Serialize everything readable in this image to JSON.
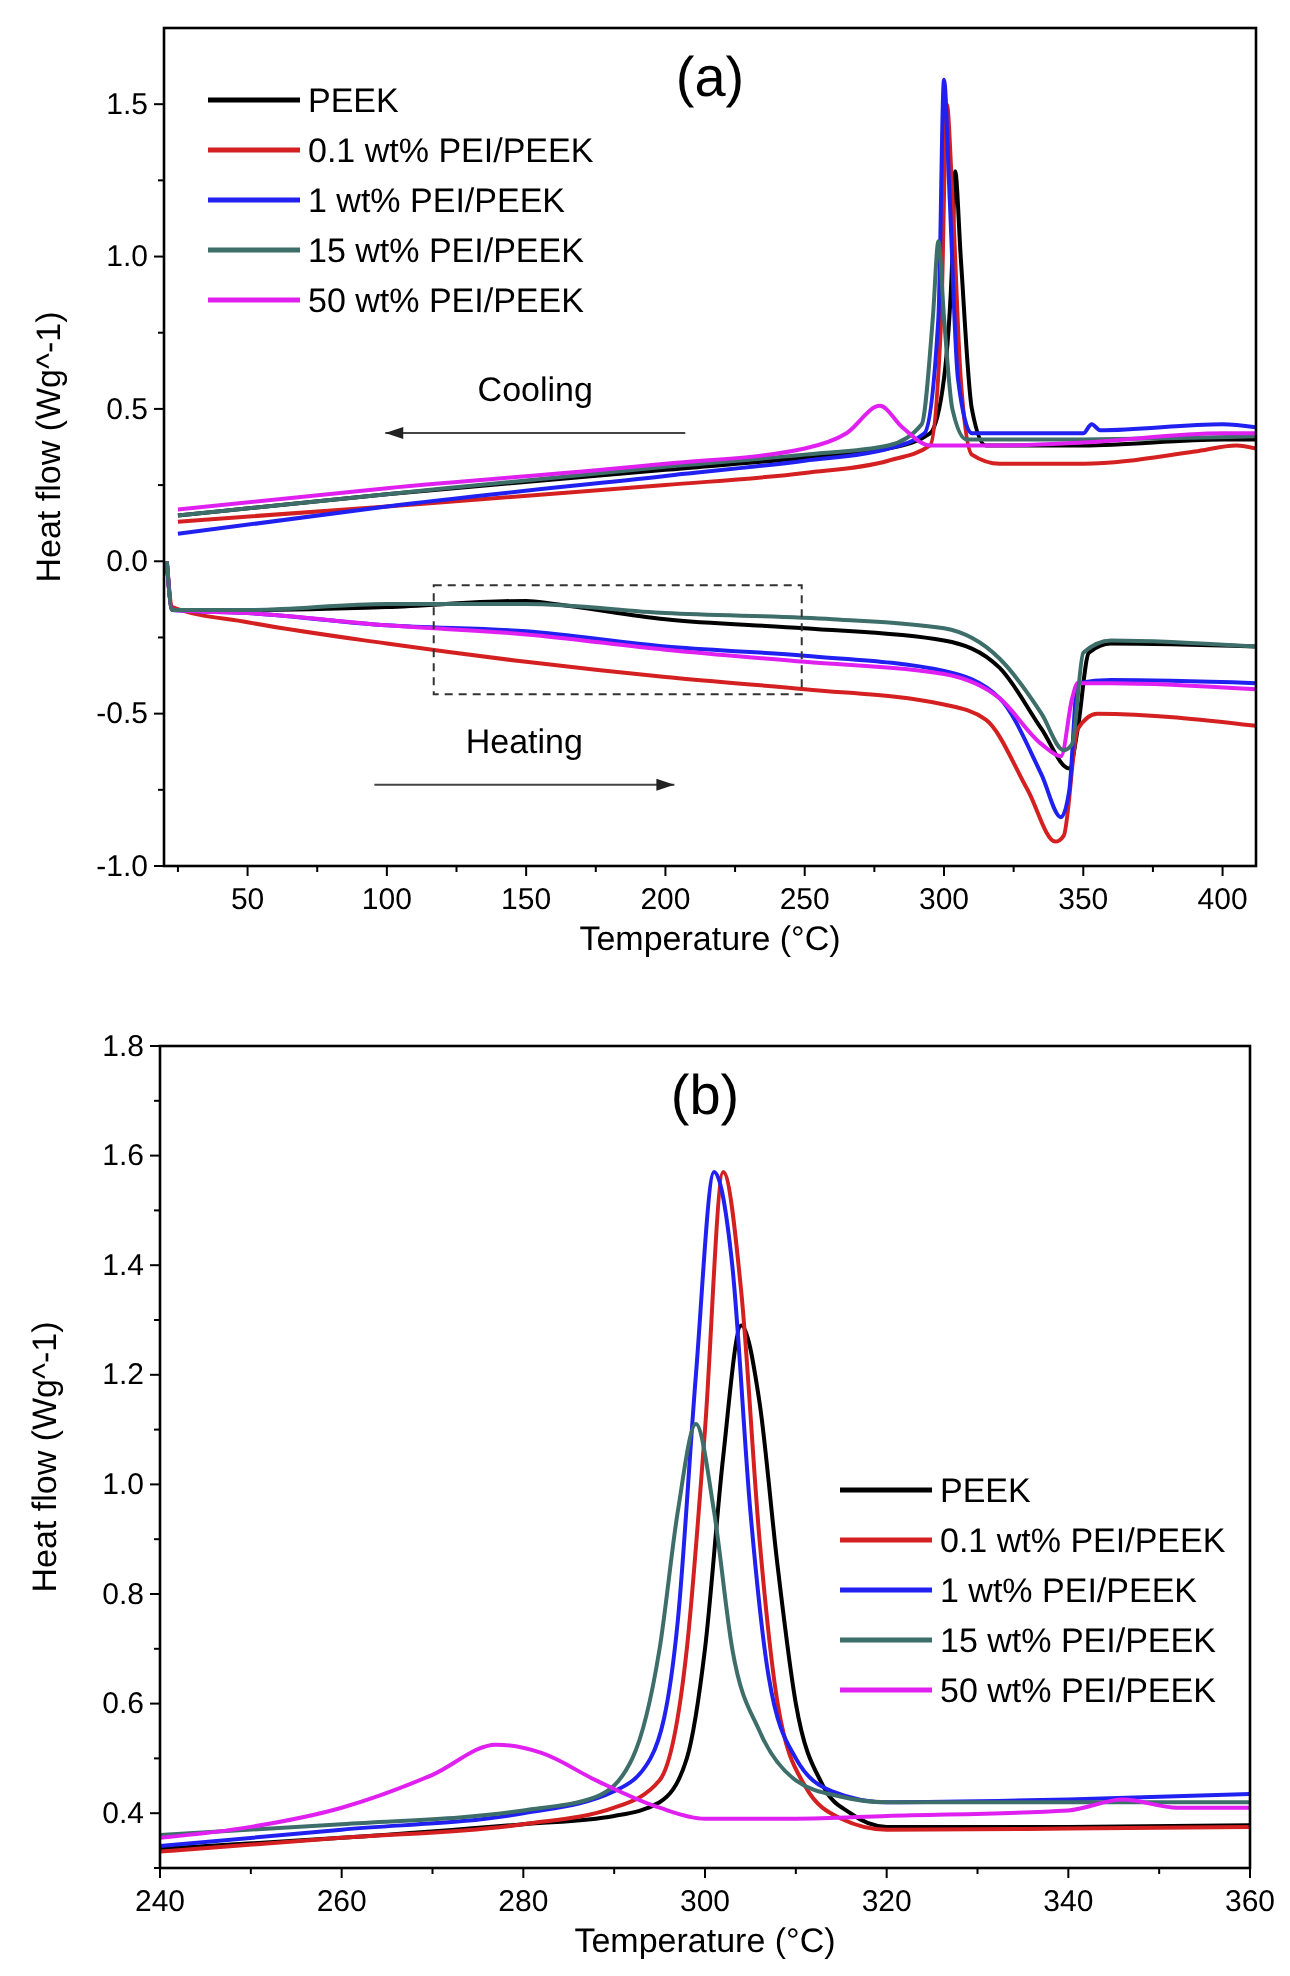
{
  "chart_data": [
    {
      "type": "line",
      "title": "(a)",
      "xlabel": "Temperature (°C)",
      "ylabel": "Heat flow (Wg^-1)",
      "annotations": [
        "Cooling",
        "Heating"
      ],
      "xlim": [
        20,
        412
      ],
      "ylim": [
        -1.0,
        1.75
      ],
      "xticks": [
        {
          "value": 25,
          "label": null
        },
        50,
        {
          "value": 75,
          "label": null
        },
        100,
        {
          "value": 125,
          "label": null
        },
        150,
        {
          "value": 175,
          "label": null
        },
        200,
        {
          "value": 225,
          "label": null
        },
        250,
        {
          "value": 275,
          "label": null
        },
        300,
        {
          "value": 325,
          "label": null
        },
        350,
        {
          "value": 375,
          "label": null
        },
        400
      ],
      "yticks": [
        {
          "value": -1,
          "label": "-1.0"
        },
        {
          "value": -0.75,
          "label": null
        },
        {
          "value": -0.5,
          "label": "-0.5"
        },
        {
          "value": -0.25,
          "label": null
        },
        {
          "value": 0,
          "label": "0.0"
        },
        {
          "value": 0.25,
          "label": null
        },
        {
          "value": 0.5,
          "label": "0.5"
        },
        {
          "value": 0.75,
          "label": null
        },
        {
          "value": 1,
          "label": "1.0"
        },
        {
          "value": 1.25,
          "label": null
        },
        {
          "value": 1.5,
          "label": "1.5"
        }
      ],
      "grid": false,
      "legend": "top left",
      "line_style": "solid",
      "marker": "none",
      "series": [
        {
          "name": "PEEK",
          "color": "#000000",
          "x": [
            25,
            100,
            200,
            250,
            280,
            295,
            300,
            303,
            304,
            306,
            310,
            315,
            350,
            400,
            412
          ],
          "values": [
            0.15,
            0.22,
            0.3,
            0.34,
            0.37,
            0.42,
            0.6,
            1.0,
            1.28,
            1.0,
            0.5,
            0.38,
            0.38,
            0.4,
            0.4
          ]
        },
        {
          "name": "0.1 wt% PEI/PEEK",
          "color": "#d42020",
          "x": [
            25,
            100,
            200,
            250,
            280,
            295,
            299,
            301,
            303,
            306,
            310,
            320,
            350,
            390,
            405,
            412
          ],
          "values": [
            0.13,
            0.18,
            0.25,
            0.29,
            0.33,
            0.38,
            0.8,
            1.5,
            1.2,
            0.6,
            0.35,
            0.32,
            0.32,
            0.36,
            0.38,
            0.37
          ]
        },
        {
          "name": "1 wt% PEI/PEEK",
          "color": "#2020f0",
          "x": [
            25,
            100,
            200,
            250,
            280,
            293,
            298,
            300,
            302,
            305,
            310,
            350,
            353,
            356,
            400,
            412
          ],
          "values": [
            0.09,
            0.18,
            0.28,
            0.33,
            0.37,
            0.42,
            0.8,
            1.58,
            1.2,
            0.6,
            0.42,
            0.42,
            0.45,
            0.43,
            0.45,
            0.44
          ]
        },
        {
          "name": "15 wt% PEI/PEEK",
          "color": "#3d6e6a",
          "x": [
            25,
            100,
            200,
            250,
            280,
            292,
            296,
            298,
            300,
            303,
            308,
            350,
            412
          ],
          "values": [
            0.15,
            0.22,
            0.31,
            0.35,
            0.38,
            0.45,
            0.8,
            1.05,
            0.8,
            0.5,
            0.4,
            0.4,
            0.41
          ]
        },
        {
          "name": "50 wt% PEI/PEEK",
          "color": "#e020f0",
          "x": [
            25,
            100,
            200,
            250,
            265,
            277,
            285,
            295,
            320,
            350,
            400,
            412
          ],
          "values": [
            0.17,
            0.24,
            0.32,
            0.37,
            0.42,
            0.51,
            0.44,
            0.38,
            0.38,
            0.39,
            0.42,
            0.42
          ]
        },
        {
          "color": "#000000",
          "x": [
            21,
            23,
            50,
            100,
            150,
            160,
            200,
            250,
            300,
            320,
            335,
            345,
            348,
            352,
            360,
            412
          ],
          "values": [
            0.0,
            -0.16,
            -0.16,
            -0.15,
            -0.13,
            -0.14,
            -0.19,
            -0.22,
            -0.26,
            -0.35,
            -0.55,
            -0.68,
            -0.55,
            -0.3,
            -0.27,
            -0.28
          ]
        },
        {
          "color": "#d42020",
          "x": [
            21,
            23,
            50,
            100,
            150,
            200,
            250,
            300,
            315,
            330,
            340,
            343,
            348,
            355,
            412
          ],
          "values": [
            0.0,
            -0.15,
            -0.2,
            -0.27,
            -0.33,
            -0.38,
            -0.42,
            -0.47,
            -0.52,
            -0.75,
            -0.92,
            -0.9,
            -0.55,
            -0.5,
            -0.54
          ]
        },
        {
          "color": "#2020f0",
          "x": [
            21,
            23,
            50,
            100,
            150,
            200,
            250,
            300,
            320,
            335,
            342,
            345,
            348,
            360,
            412
          ],
          "values": [
            0.0,
            -0.16,
            -0.17,
            -0.21,
            -0.23,
            -0.28,
            -0.31,
            -0.36,
            -0.45,
            -0.7,
            -0.84,
            -0.75,
            -0.4,
            -0.39,
            -0.4
          ]
        },
        {
          "color": "#e020f0",
          "x": [
            21,
            23,
            50,
            100,
            150,
            200,
            250,
            300,
            320,
            335,
            342,
            346,
            348,
            360,
            412
          ],
          "values": [
            0.0,
            -0.16,
            -0.17,
            -0.21,
            -0.24,
            -0.29,
            -0.33,
            -0.37,
            -0.45,
            -0.6,
            -0.64,
            -0.45,
            -0.4,
            -0.4,
            -0.42
          ]
        },
        {
          "color": "#3d6e6a",
          "x": [
            21,
            23,
            50,
            100,
            150,
            200,
            260,
            300,
            320,
            335,
            343,
            346,
            350,
            360,
            412
          ],
          "values": [
            0.0,
            -0.16,
            -0.16,
            -0.14,
            -0.14,
            -0.17,
            -0.19,
            -0.22,
            -0.32,
            -0.5,
            -0.62,
            -0.6,
            -0.3,
            -0.26,
            -0.28
          ]
        }
      ]
    },
    {
      "type": "line",
      "title": "(b)",
      "xlabel": "Temperature (°C)",
      "ylabel": "Heat flow (Wg^-1)",
      "xlim": [
        240,
        360
      ],
      "ylim": [
        0.3,
        1.8
      ],
      "xticks": [
        240,
        {
          "value": 250,
          "label": null
        },
        260,
        {
          "value": 270,
          "label": null
        },
        280,
        {
          "value": 290,
          "label": null
        },
        300,
        {
          "value": 310,
          "label": null
        },
        320,
        {
          "value": 330,
          "label": null
        },
        340,
        {
          "value": 350,
          "label": null
        },
        360
      ],
      "yticks": [
        {
          "value": 0.3,
          "label": null
        },
        0.4,
        {
          "value": 0.5,
          "label": null
        },
        0.6,
        {
          "value": 0.7,
          "label": null
        },
        0.8,
        {
          "value": 0.9,
          "label": null
        },
        {
          "value": 1,
          "label": "1.0"
        },
        {
          "value": 1.1,
          "label": null
        },
        1.2,
        {
          "value": 1.3,
          "label": null
        },
        1.4,
        {
          "value": 1.5,
          "label": null
        },
        1.6,
        {
          "value": 1.7,
          "label": null
        },
        1.8
      ],
      "grid": false,
      "legend": "right",
      "line_style": "solid",
      "marker": "none",
      "series": [
        {
          "name": "PEEK",
          "color": "#000000",
          "x": [
            240,
            260,
            280,
            290,
            295,
            298,
            300,
            302,
            304,
            306,
            308,
            310,
            313,
            316,
            320,
            340,
            360
          ],
          "values": [
            0.335,
            0.355,
            0.38,
            0.395,
            0.42,
            0.5,
            0.7,
            1.05,
            1.29,
            1.15,
            0.85,
            0.6,
            0.45,
            0.4,
            0.375,
            0.375,
            0.378
          ]
        },
        {
          "name": "0.1 wt% PEI/PEEK",
          "color": "#d42020",
          "x": [
            240,
            260,
            280,
            290,
            295,
            298,
            300,
            302,
            304,
            306,
            308,
            311,
            315,
            320,
            340,
            360
          ],
          "values": [
            0.33,
            0.355,
            0.38,
            0.41,
            0.46,
            0.7,
            1.1,
            1.57,
            1.35,
            0.9,
            0.6,
            0.45,
            0.39,
            0.37,
            0.372,
            0.375
          ]
        },
        {
          "name": "1 wt% PEI/PEEK",
          "color": "#2020f0",
          "x": [
            240,
            260,
            280,
            290,
            294,
            297,
            299,
            301,
            303,
            305,
            307,
            310,
            314,
            320,
            340,
            360
          ],
          "values": [
            0.34,
            0.37,
            0.4,
            0.44,
            0.5,
            0.75,
            1.2,
            1.57,
            1.4,
            0.95,
            0.65,
            0.5,
            0.44,
            0.42,
            0.425,
            0.435
          ]
        },
        {
          "name": "15 wt% PEI/PEEK",
          "color": "#3d6e6a",
          "x": [
            240,
            260,
            280,
            288,
            292,
            295,
            297,
            299,
            301,
            303,
            306,
            310,
            315,
            320,
            360
          ],
          "values": [
            0.36,
            0.38,
            0.405,
            0.43,
            0.5,
            0.7,
            0.95,
            1.11,
            0.95,
            0.7,
            0.55,
            0.46,
            0.43,
            0.42,
            0.42
          ]
        },
        {
          "name": "50 wt% PEI/PEEK",
          "color": "#e020f0",
          "x": [
            240,
            250,
            260,
            270,
            277,
            282,
            288,
            295,
            300,
            310,
            320,
            340,
            346,
            352,
            360
          ],
          "values": [
            0.355,
            0.375,
            0.41,
            0.47,
            0.525,
            0.51,
            0.46,
            0.41,
            0.39,
            0.39,
            0.395,
            0.405,
            0.425,
            0.41,
            0.41
          ]
        }
      ]
    }
  ]
}
